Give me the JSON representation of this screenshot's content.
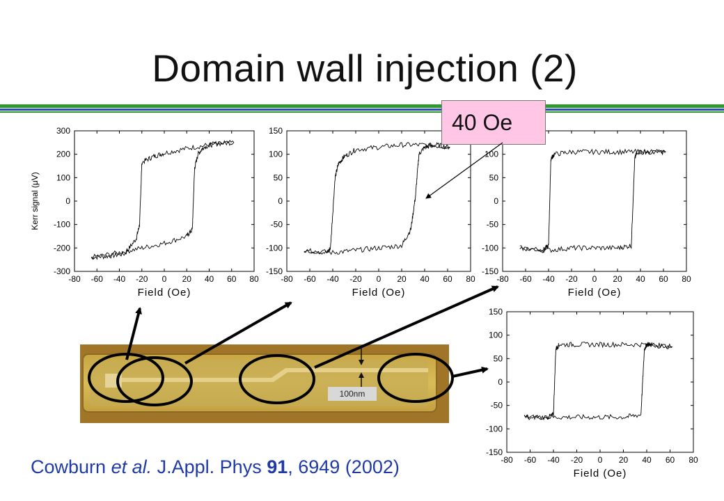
{
  "title": "Domain wall injection (2)",
  "callout": "40 Oe",
  "scale_label": "100nm",
  "citation": {
    "author": "Cowburn",
    "etal": "et al.",
    "journal": " J.Appl. Phys ",
    "volume": "91",
    "rest": ", 6949 (2002)"
  },
  "colors": {
    "rule_green": "#2e9a2e",
    "rule_blue": "#2a4fb0",
    "citation": "#1f3aa6",
    "callout_bg": "#ffc6e6"
  },
  "chart_data": [
    {
      "type": "line",
      "xlabel": "Field (Oe)",
      "ylabel": "Kerr signal (μV)",
      "xticks": [
        -80,
        -60,
        -40,
        -20,
        0,
        20,
        40,
        60,
        80
      ],
      "yticks": [
        300,
        200,
        100,
        0,
        -100,
        -200,
        -300
      ],
      "xlim": [
        -80,
        80
      ],
      "ylim": [
        -300,
        300
      ],
      "series": [
        {
          "x": [
            -65,
            -50,
            -35,
            -25,
            -22,
            -20,
            -10,
            0,
            20,
            40,
            62
          ],
          "y": [
            -240,
            -235,
            -225,
            -160,
            -100,
            165,
            190,
            205,
            225,
            240,
            250
          ]
        },
        {
          "x": [
            -65,
            -40,
            -20,
            0,
            20,
            25,
            27,
            30,
            35,
            45,
            62
          ],
          "y": [
            -240,
            -220,
            -200,
            -180,
            -150,
            -120,
            140,
            200,
            230,
            245,
            250
          ]
        }
      ]
    },
    {
      "type": "line",
      "xlabel": "Field (Oe)",
      "xticks": [
        -80,
        -60,
        -40,
        -20,
        0,
        20,
        40,
        60,
        80
      ],
      "yticks": [
        150,
        100,
        50,
        0,
        -50,
        -100,
        -150
      ],
      "xlim": [
        -80,
        80
      ],
      "ylim": [
        -150,
        150
      ],
      "series": [
        {
          "x": [
            -65,
            -45,
            -42,
            -38,
            -35,
            -30,
            -20,
            0,
            20,
            40,
            62
          ],
          "y": [
            -105,
            -110,
            -100,
            50,
            80,
            95,
            110,
            115,
            120,
            120,
            115
          ]
        },
        {
          "x": [
            -65,
            -40,
            -20,
            0,
            20,
            28,
            32,
            35,
            40,
            50,
            62
          ],
          "y": [
            -105,
            -110,
            -105,
            -100,
            -95,
            -60,
            10,
            100,
            115,
            120,
            115
          ]
        }
      ]
    },
    {
      "type": "line",
      "xlabel": "Field (Oe)",
      "xticks": [
        -80,
        -60,
        -40,
        -20,
        0,
        20,
        40,
        60,
        80
      ],
      "yticks": [
        150,
        100,
        50,
        0,
        -50,
        -100,
        -150
      ],
      "xlim": [
        -80,
        80
      ],
      "ylim": [
        -150,
        150
      ],
      "series": [
        {
          "x": [
            -65,
            -45,
            -40,
            -38,
            -35,
            -20,
            0,
            20,
            40,
            62
          ],
          "y": [
            -100,
            -105,
            -95,
            90,
            100,
            105,
            105,
            105,
            105,
            105
          ]
        },
        {
          "x": [
            -65,
            -40,
            -20,
            0,
            20,
            32,
            35,
            37,
            45,
            62
          ],
          "y": [
            -100,
            -105,
            -100,
            -100,
            -100,
            -95,
            90,
            105,
            105,
            105
          ]
        }
      ]
    },
    {
      "type": "line",
      "xlabel": "Field (Oe)",
      "xticks": [
        -80,
        -60,
        -40,
        -20,
        0,
        20,
        40,
        60,
        80
      ],
      "yticks": [
        150,
        100,
        50,
        0,
        -50,
        -100,
        -150
      ],
      "xlim": [
        -80,
        80
      ],
      "ylim": [
        -150,
        150
      ],
      "series": [
        {
          "x": [
            -65,
            -45,
            -40,
            -38,
            -35,
            -20,
            0,
            20,
            40,
            62
          ],
          "y": [
            -75,
            -75,
            -70,
            70,
            80,
            80,
            80,
            80,
            80,
            75
          ]
        },
        {
          "x": [
            -65,
            -40,
            -20,
            0,
            20,
            35,
            38,
            40,
            45,
            62
          ],
          "y": [
            -75,
            -75,
            -75,
            -75,
            -75,
            -70,
            70,
            80,
            80,
            75
          ]
        }
      ]
    }
  ]
}
